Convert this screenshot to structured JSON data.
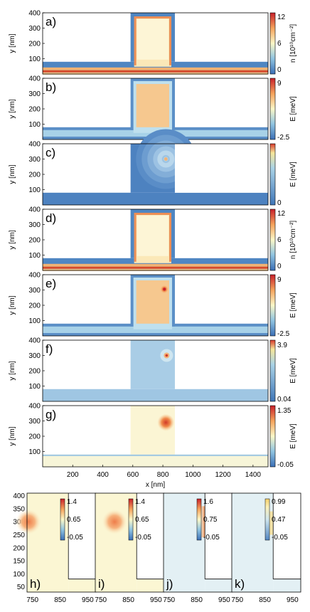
{
  "panels": [
    {
      "label": "a)",
      "y_ticks": [
        "400",
        "300",
        "200",
        "100"
      ],
      "ylabel": "y [nm]",
      "cb_label": "n [10¹⁰cm⁻²]",
      "cb_ticks": [
        "12",
        "6",
        "0"
      ],
      "map": "density"
    },
    {
      "label": "b)",
      "y_ticks": [
        "400",
        "300",
        "200",
        "100"
      ],
      "ylabel": "y [nm]",
      "cb_label": "E [meV]",
      "cb_ticks": [
        "9",
        "-2.5"
      ],
      "map": "energy"
    },
    {
      "label": "c)",
      "y_ticks": [
        "400",
        "300",
        "200",
        "100"
      ],
      "ylabel": "y [nm]",
      "cb_label": "E [meV]",
      "cb_ticks": [
        "0"
      ],
      "map": "point"
    },
    {
      "label": "d)",
      "y_ticks": [
        "400",
        "300",
        "200",
        "100"
      ],
      "ylabel": "y [nm]",
      "cb_label": "n [10¹⁰cm⁻²]",
      "cb_ticks": [
        "12",
        "6",
        "0"
      ],
      "map": "density"
    },
    {
      "label": "e)",
      "y_ticks": [
        "400",
        "300",
        "200",
        "100"
      ],
      "ylabel": "y [nm]",
      "cb_label": "E [meV]",
      "cb_ticks": [
        "9",
        "-2.5"
      ],
      "map": "energy_hot"
    },
    {
      "label": "f)",
      "y_ticks": [
        "400",
        "300",
        "200",
        "100"
      ],
      "ylabel": "y [nm]",
      "cb_label": "E [meV]",
      "cb_ticks": [
        "3.9",
        "0.04"
      ],
      "map": "point_small"
    },
    {
      "label": "g)",
      "y_ticks": [
        "400",
        "300",
        "200",
        "100"
      ],
      "ylabel": "y [nm]",
      "cb_label": "E [meV]",
      "cb_ticks": [
        "1.35",
        "-0.05"
      ],
      "map": "diff"
    }
  ],
  "x_ticks": [
    "200",
    "400",
    "600",
    "800",
    "1000",
    "1200",
    "1400"
  ],
  "xlabel": "x [nm]",
  "zoom": {
    "y_ticks": [
      "400",
      "350",
      "300",
      "250",
      "200",
      "150",
      "100",
      "50"
    ],
    "x_ticks": [
      "750",
      "850",
      "950"
    ],
    "panels": [
      {
        "label": "h)",
        "cb_ticks": [
          "1.4",
          "0.65",
          "-0.05"
        ]
      },
      {
        "label": "i)",
        "cb_ticks": [
          "1.4",
          "0.65",
          "-0.05"
        ]
      },
      {
        "label": "j)",
        "cb_ticks": [
          "1.6",
          "0.75",
          "-0.05"
        ]
      },
      {
        "label": "k)",
        "cb_ticks": [
          "0.99",
          "0.47",
          "-0.05"
        ]
      }
    ]
  }
}
